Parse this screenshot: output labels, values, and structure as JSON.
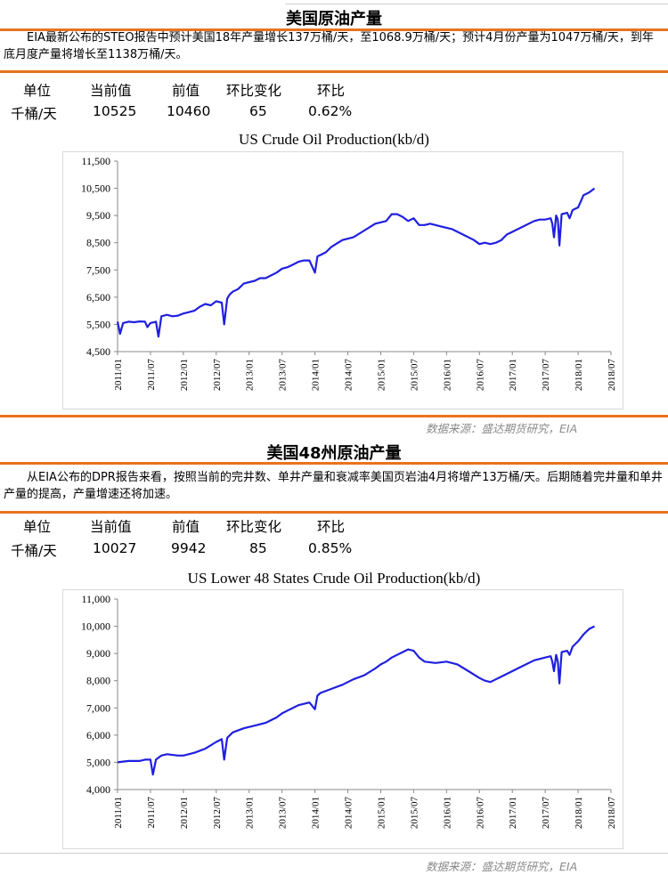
{
  "section1": {
    "title": "美国原油产量",
    "description": "EIA最新公布的STEO报告中预计美国18年产量增长137万桶/天，至1068.9万桶/天；预计4月份产量为1047万桶/天，到年底月度产量将增长至1138万桶/天。",
    "stats": {
      "headers": [
        "单位",
        "当前值",
        "前值",
        "环比变化",
        "环比"
      ],
      "values": [
        "千桶/天",
        "10525",
        "10460",
        "65",
        "0.62%"
      ]
    },
    "source": "数据来源：盛达期货研究，EIA"
  },
  "section2": {
    "title": "美国48州原油产量",
    "description": "从EIA公布的DPR报告来看，按照当前的完井数、单井产量和衰减率美国页岩油4月将增产13万桶/天。后期随着完井量和单井产量的提高，产量增速还将加速。",
    "stats": {
      "headers": [
        "单位",
        "当前值",
        "前值",
        "环比变化",
        "环比"
      ],
      "values": [
        "千桶/天",
        "10027",
        "9942",
        "85",
        "0.85%"
      ]
    },
    "source": "数据来源：盛达期货研究，EIA"
  },
  "colors": {
    "accent": "#E8731E",
    "series": "#1F1FE0",
    "source_text": "#8a8a8a"
  },
  "chart_data": [
    {
      "type": "line",
      "title": "US Crude Oil Production(kb/d)",
      "xlabel": "",
      "ylabel": "",
      "x_ticks": [
        "2011/01",
        "2011/07",
        "2012/01",
        "2012/07",
        "2013/01",
        "2013/07",
        "2014/01",
        "2014/07",
        "2015/01",
        "2015/07",
        "2016/01",
        "2016/07",
        "2017/01",
        "2017/07",
        "2018/01",
        "2018/07"
      ],
      "y_ticks": [
        "4,500",
        "5,500",
        "6,500",
        "7,500",
        "8,500",
        "9,500",
        "10,500",
        "11,500"
      ],
      "ylim": [
        4500,
        11500
      ],
      "xlim": [
        "2011/01",
        "2018/07"
      ],
      "grid": false,
      "legend": "none",
      "series": [
        {
          "x": [
            "2011/01",
            "2011/01",
            "2011/02",
            "2011/03",
            "2011/04",
            "2011/05",
            "2011/06",
            "2011/06",
            "2011/07",
            "2011/08",
            "2011/08",
            "2011/09",
            "2011/10",
            "2011/11",
            "2011/12",
            "2012/01",
            "2012/02",
            "2012/03",
            "2012/04",
            "2012/05",
            "2012/06",
            "2012/07",
            "2012/08",
            "2012/08",
            "2012/09",
            "2012/09",
            "2012/10",
            "2012/11",
            "2012/12",
            "2013/01",
            "2013/02",
            "2013/03",
            "2013/04",
            "2013/05",
            "2013/06",
            "2013/07",
            "2013/08",
            "2013/09",
            "2013/10",
            "2013/11",
            "2013/12",
            "2014/01",
            "2014/01",
            "2014/02",
            "2014/03",
            "2014/04",
            "2014/06",
            "2014/08",
            "2014/10",
            "2014/12",
            "2015/01",
            "2015/02",
            "2015/03",
            "2015/04",
            "2015/05",
            "2015/06",
            "2015/07",
            "2015/08",
            "2015/09",
            "2015/10",
            "2015/12",
            "2016/02",
            "2016/04",
            "2016/06",
            "2016/07",
            "2016/08",
            "2016/09",
            "2016/10",
            "2016/11",
            "2016/12",
            "2017/01",
            "2017/02",
            "2017/03",
            "2017/04",
            "2017/05",
            "2017/06",
            "2017/07",
            "2017/08",
            "2017/08",
            "2017/08",
            "2017/09",
            "2017/09",
            "2017/09",
            "2017/10",
            "2017/11",
            "2017/11",
            "2017/12",
            "2018/01",
            "2018/01",
            "2018/02",
            "2018/03",
            "2018/04"
          ],
          "y": [
            5600,
            5150,
            5550,
            5600,
            5580,
            5610,
            5600,
            5400,
            5550,
            5600,
            5050,
            5800,
            5850,
            5800,
            5820,
            5900,
            5950,
            6000,
            6150,
            6250,
            6200,
            6350,
            6300,
            5500,
            6450,
            6600,
            6700,
            6800,
            7000,
            7050,
            7100,
            7200,
            7200,
            7300,
            7400,
            7550,
            7600,
            7700,
            7800,
            7850,
            7850,
            7400,
            8000,
            8050,
            8150,
            8350,
            8600,
            8700,
            8950,
            9200,
            9250,
            9300,
            9550,
            9550,
            9450,
            9300,
            9400,
            9150,
            9150,
            9200,
            9100,
            9000,
            8800,
            8600,
            8450,
            8500,
            8450,
            8500,
            8600,
            8800,
            8900,
            9000,
            9100,
            9200,
            9300,
            9350,
            9350,
            9400,
            9200,
            8700,
            9500,
            9350,
            8400,
            9550,
            9600,
            9400,
            9700,
            9800,
            10000,
            10250,
            10350,
            10500
          ]
        }
      ]
    },
    {
      "type": "line",
      "title": "US Lower 48 States Crude Oil Production(kb/d)",
      "xlabel": "",
      "ylabel": "",
      "x_ticks": [
        "2011/01",
        "2011/07",
        "2012/01",
        "2012/07",
        "2013/01",
        "2013/07",
        "2014/01",
        "2014/07",
        "2015/01",
        "2015/07",
        "2016/01",
        "2016/07",
        "2017/01",
        "2017/07",
        "2018/01",
        "2018/07"
      ],
      "y_ticks": [
        "4,000",
        "5,000",
        "6,000",
        "7,000",
        "8,000",
        "9,000",
        "10,000",
        "11,000"
      ],
      "ylim": [
        4000,
        11000
      ],
      "xlim": [
        "2011/01",
        "2018/07"
      ],
      "grid": false,
      "legend": "none",
      "series": [
        {
          "x": [
            "2011/01",
            "2011/03",
            "2011/05",
            "2011/06",
            "2011/07",
            "2011/07",
            "2011/08",
            "2011/09",
            "2011/10",
            "2011/12",
            "2012/01",
            "2012/03",
            "2012/05",
            "2012/07",
            "2012/08",
            "2012/08",
            "2012/09",
            "2012/10",
            "2012/12",
            "2013/02",
            "2013/04",
            "2013/06",
            "2013/07",
            "2013/08",
            "2013/09",
            "2013/10",
            "2013/12",
            "2014/01",
            "2014/01",
            "2014/02",
            "2014/04",
            "2014/06",
            "2014/08",
            "2014/10",
            "2014/12",
            "2015/01",
            "2015/02",
            "2015/03",
            "2015/04",
            "2015/05",
            "2015/06",
            "2015/07",
            "2015/08",
            "2015/09",
            "2015/11",
            "2016/01",
            "2016/03",
            "2016/05",
            "2016/07",
            "2016/08",
            "2016/09",
            "2016/10",
            "2016/11",
            "2017/01",
            "2017/03",
            "2017/05",
            "2017/07",
            "2017/08",
            "2017/08",
            "2017/08",
            "2017/09",
            "2017/09",
            "2017/09",
            "2017/10",
            "2017/11",
            "2017/11",
            "2017/12",
            "2018/01",
            "2018/02",
            "2018/03",
            "2018/04"
          ],
          "y": [
            5000,
            5050,
            5050,
            5100,
            5100,
            4550,
            5100,
            5250,
            5300,
            5250,
            5250,
            5350,
            5500,
            5750,
            5850,
            5100,
            5900,
            6100,
            6250,
            6350,
            6450,
            6650,
            6800,
            6900,
            7000,
            7100,
            7200,
            6950,
            7450,
            7550,
            7700,
            7850,
            8050,
            8200,
            8450,
            8600,
            8700,
            8850,
            8950,
            9050,
            9150,
            9100,
            8850,
            8700,
            8650,
            8700,
            8600,
            8350,
            8100,
            8000,
            7950,
            8050,
            8150,
            8350,
            8550,
            8750,
            8850,
            8900,
            8700,
            8350,
            8950,
            8700,
            7900,
            9050,
            9100,
            8950,
            9250,
            9450,
            9700,
            9900,
            10000
          ]
        }
      ]
    }
  ]
}
